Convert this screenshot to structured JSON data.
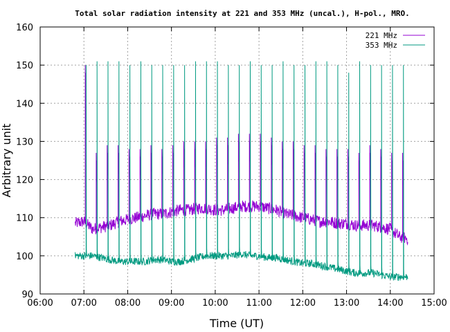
{
  "chart_data": {
    "type": "line",
    "title": "Total solar radiation intensity at 221 and 353 MHz (uncal.), H-pol., MRO.",
    "xlabel": "Time (UT)",
    "ylabel": "Arbitrary unit",
    "xlim": [
      6.0,
      15.0
    ],
    "ylim": [
      90,
      160
    ],
    "x_ticks": [
      6,
      7,
      8,
      9,
      10,
      11,
      12,
      13,
      14,
      15
    ],
    "x_tick_labels": [
      "06:00",
      "07:00",
      "08:00",
      "09:00",
      "10:00",
      "11:00",
      "12:00",
      "13:00",
      "14:00",
      "15:00"
    ],
    "y_ticks": [
      90,
      100,
      110,
      120,
      130,
      140,
      150,
      160
    ],
    "y_tick_labels": [
      "90",
      "100",
      "110",
      "120",
      "130",
      "140",
      "150",
      "160"
    ],
    "grid": true,
    "legend_position": "top-right",
    "series": [
      {
        "name": "221 MHz",
        "color": "#9400d3",
        "baseline": [
          [
            6.8,
            108.5
          ],
          [
            7.0,
            109
          ],
          [
            7.2,
            107
          ],
          [
            7.4,
            107.5
          ],
          [
            7.6,
            108
          ],
          [
            7.8,
            109
          ],
          [
            8.0,
            109.5
          ],
          [
            8.2,
            110
          ],
          [
            8.4,
            110.5
          ],
          [
            8.6,
            111
          ],
          [
            8.8,
            111
          ],
          [
            9.0,
            111.5
          ],
          [
            9.2,
            112
          ],
          [
            9.4,
            112
          ],
          [
            9.6,
            112.5
          ],
          [
            9.8,
            112.5
          ],
          [
            10.0,
            112
          ],
          [
            10.2,
            112
          ],
          [
            10.4,
            112.5
          ],
          [
            10.6,
            113
          ],
          [
            10.8,
            113
          ],
          [
            11.0,
            113
          ],
          [
            11.2,
            112.5
          ],
          [
            11.4,
            112
          ],
          [
            11.6,
            111
          ],
          [
            11.8,
            110.5
          ],
          [
            12.0,
            110
          ],
          [
            12.2,
            109.5
          ],
          [
            12.4,
            109
          ],
          [
            12.6,
            109
          ],
          [
            12.8,
            108.5
          ],
          [
            13.0,
            108.5
          ],
          [
            13.2,
            108
          ],
          [
            13.4,
            108
          ],
          [
            13.6,
            108
          ],
          [
            13.8,
            107.5
          ],
          [
            14.0,
            107
          ],
          [
            14.2,
            105
          ],
          [
            14.4,
            104.5
          ]
        ],
        "spikes": [
          [
            7.03,
            150
          ],
          [
            7.28,
            127
          ],
          [
            7.53,
            129
          ],
          [
            7.78,
            129
          ],
          [
            8.03,
            128
          ],
          [
            8.28,
            128
          ],
          [
            8.53,
            129
          ],
          [
            8.78,
            128
          ],
          [
            9.03,
            129
          ],
          [
            9.28,
            130
          ],
          [
            9.53,
            130
          ],
          [
            9.78,
            130
          ],
          [
            10.03,
            131
          ],
          [
            10.28,
            131
          ],
          [
            10.53,
            132
          ],
          [
            10.78,
            132
          ],
          [
            11.03,
            132
          ],
          [
            11.28,
            131
          ],
          [
            11.53,
            130
          ],
          [
            11.78,
            130
          ],
          [
            12.03,
            129
          ],
          [
            12.28,
            129
          ],
          [
            12.53,
            128
          ],
          [
            12.78,
            128
          ],
          [
            13.03,
            128
          ],
          [
            13.28,
            127
          ],
          [
            13.53,
            129
          ],
          [
            13.78,
            128
          ],
          [
            14.03,
            127
          ],
          [
            14.28,
            127
          ]
        ]
      },
      {
        "name": "353 MHz",
        "color": "#009a80",
        "baseline": [
          [
            6.8,
            100
          ],
          [
            7.0,
            100
          ],
          [
            7.2,
            100
          ],
          [
            7.4,
            99.5
          ],
          [
            7.6,
            99
          ],
          [
            7.8,
            98.5
          ],
          [
            8.0,
            98.5
          ],
          [
            8.2,
            98.5
          ],
          [
            8.4,
            98.5
          ],
          [
            8.6,
            99
          ],
          [
            8.8,
            99
          ],
          [
            9.0,
            98.5
          ],
          [
            9.2,
            98.5
          ],
          [
            9.4,
            99
          ],
          [
            9.6,
            99.5
          ],
          [
            9.8,
            100
          ],
          [
            10.0,
            100
          ],
          [
            10.2,
            100
          ],
          [
            10.4,
            100
          ],
          [
            10.6,
            100.5
          ],
          [
            10.8,
            100
          ],
          [
            11.0,
            100
          ],
          [
            11.2,
            99.5
          ],
          [
            11.4,
            99.5
          ],
          [
            11.6,
            99
          ],
          [
            11.8,
            98.5
          ],
          [
            12.0,
            98
          ],
          [
            12.2,
            98
          ],
          [
            12.4,
            97.5
          ],
          [
            12.6,
            97
          ],
          [
            12.8,
            96.5
          ],
          [
            13.0,
            96
          ],
          [
            13.2,
            95.5
          ],
          [
            13.4,
            95.5
          ],
          [
            13.6,
            95.5
          ],
          [
            13.8,
            95
          ],
          [
            14.0,
            94.5
          ],
          [
            14.2,
            94.5
          ],
          [
            14.4,
            94.5
          ]
        ],
        "spikes": [
          [
            7.05,
            150
          ],
          [
            7.3,
            151
          ],
          [
            7.55,
            151
          ],
          [
            7.8,
            151
          ],
          [
            8.05,
            150
          ],
          [
            8.3,
            151
          ],
          [
            8.55,
            150
          ],
          [
            8.8,
            150
          ],
          [
            9.05,
            150
          ],
          [
            9.3,
            150
          ],
          [
            9.55,
            151
          ],
          [
            9.8,
            151
          ],
          [
            10.05,
            151
          ],
          [
            10.3,
            150
          ],
          [
            10.55,
            150
          ],
          [
            10.8,
            151
          ],
          [
            11.05,
            150
          ],
          [
            11.3,
            150
          ],
          [
            11.55,
            151
          ],
          [
            11.8,
            150
          ],
          [
            12.05,
            150
          ],
          [
            12.3,
            151
          ],
          [
            12.55,
            151
          ],
          [
            12.8,
            150
          ],
          [
            13.05,
            148
          ],
          [
            13.3,
            151
          ],
          [
            13.55,
            150
          ],
          [
            13.8,
            150
          ],
          [
            14.05,
            150
          ],
          [
            14.3,
            150
          ]
        ]
      }
    ]
  }
}
